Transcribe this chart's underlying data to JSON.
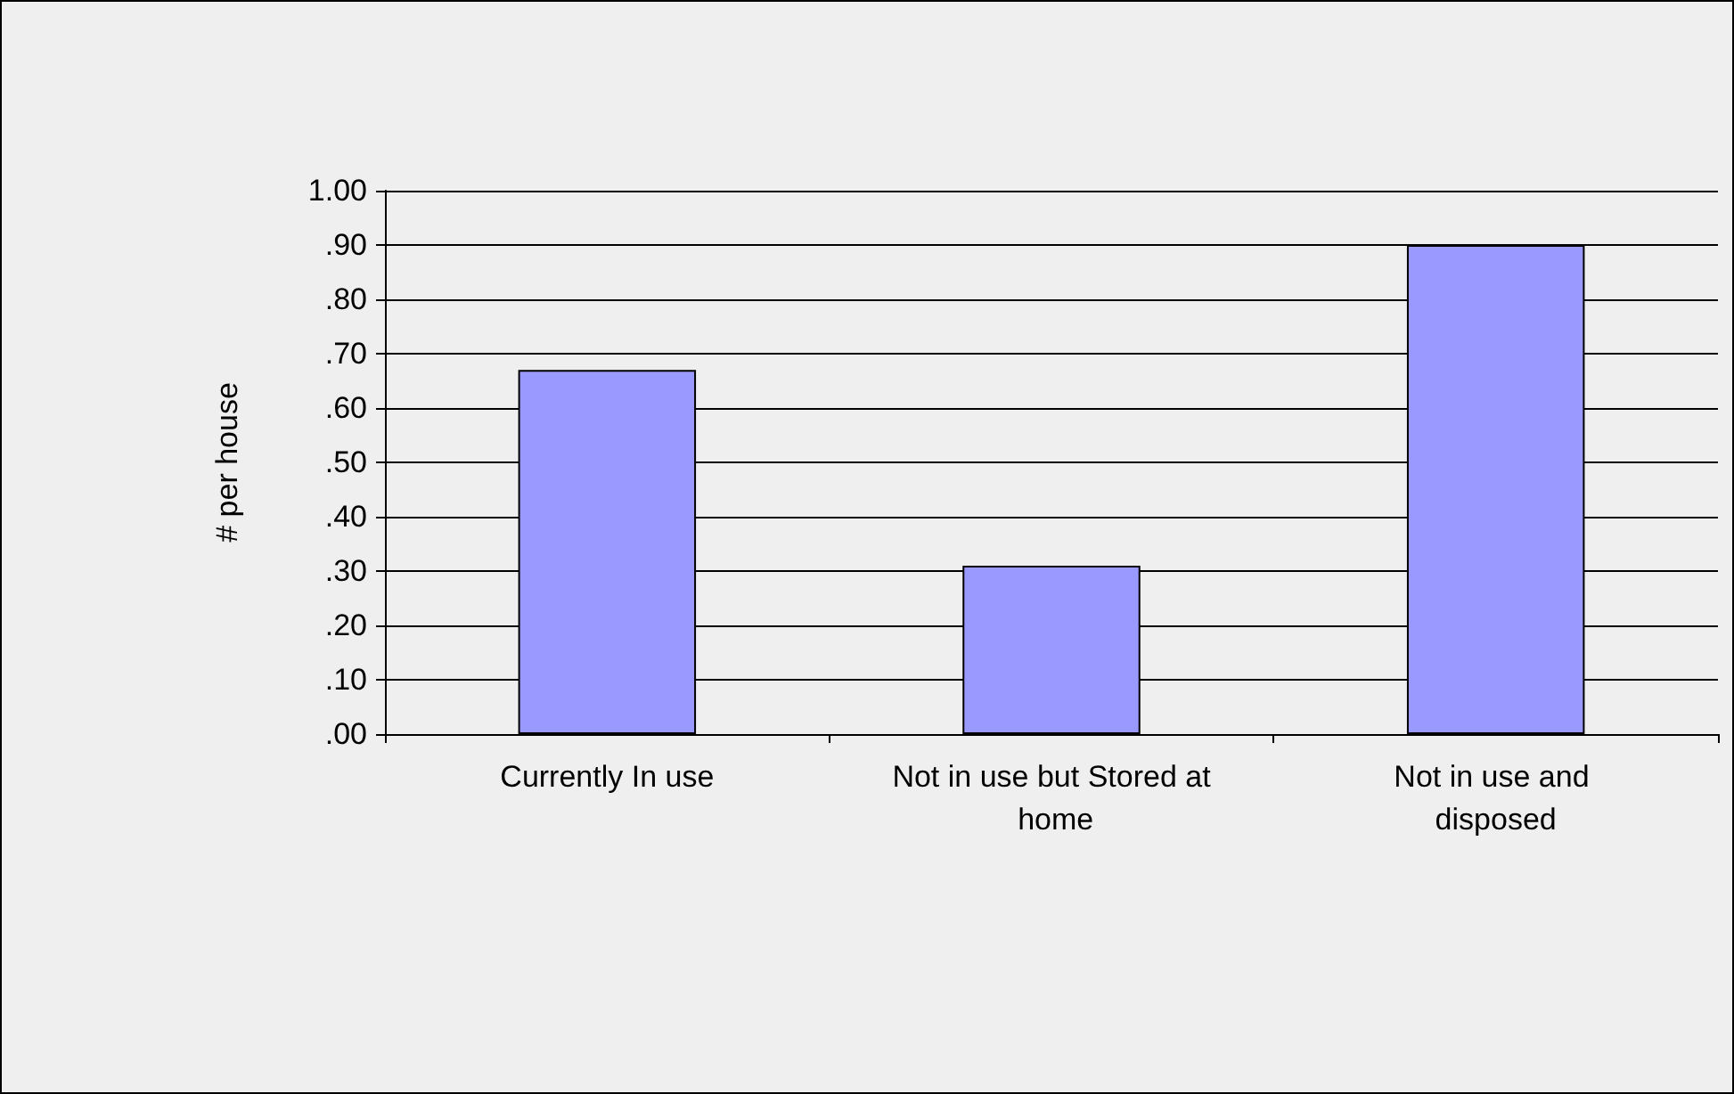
{
  "chart_data": {
    "type": "bar",
    "ylabel": "# per house",
    "categories": [
      "Currently In use",
      "Not in use but Stored at home",
      "Not in use and disposed"
    ],
    "values": [
      0.67,
      0.31,
      0.9
    ],
    "color": "#9999ff",
    "ylim": [
      0,
      1
    ],
    "yticks": [
      {
        "value": 0,
        "label": ".00"
      },
      {
        "value": 0.1,
        "label": ".10"
      },
      {
        "value": 0.2,
        "label": ".20"
      },
      {
        "value": 0.3,
        "label": ".30"
      },
      {
        "value": 0.4,
        "label": ".40"
      },
      {
        "value": 0.5,
        "label": ".50"
      },
      {
        "value": 0.6,
        "label": ".60"
      },
      {
        "value": 0.7,
        "label": ".70"
      },
      {
        "value": 0.8,
        "label": ".80"
      },
      {
        "value": 0.9,
        "label": ".90"
      },
      {
        "value": 1,
        "label": "1.00"
      }
    ],
    "grid": "y"
  }
}
